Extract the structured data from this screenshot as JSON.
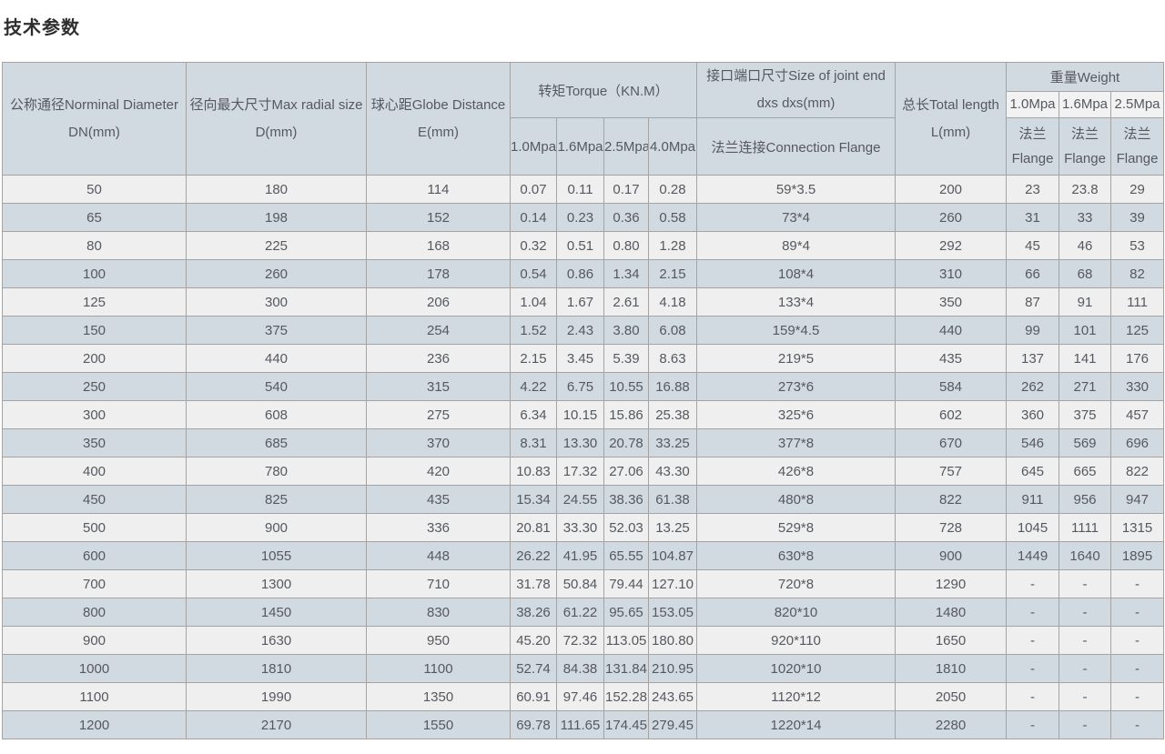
{
  "title": "技术参数",
  "header": {
    "dn": {
      "line1": "公称通径Norminal Diameter",
      "line2": "DN(mm)"
    },
    "d": {
      "line1": "径向最大尺寸Max radial size",
      "line2": "D(mm)"
    },
    "e": {
      "line1": "球心距Globe Distance",
      "line2": "E(mm)"
    },
    "torque": {
      "title": "转矩Torque（KN.M）",
      "cols": [
        "1.0Mpa",
        "1.6Mpa",
        "2.5Mpa",
        "4.0Mpa"
      ]
    },
    "joint": {
      "line1": "接口端口尺寸Size of joint end",
      "line2": "dxs dxs(mm)",
      "sub": "法兰连接Connection Flange"
    },
    "length": {
      "line1": "总长Total length",
      "line2": "L(mm)"
    },
    "weight": {
      "title": "重量Weight",
      "cols": [
        "1.0Mpa",
        "1.6Mpa",
        "2.5Mpa"
      ],
      "sub_line1": "法兰",
      "sub_line2": "Flange"
    }
  },
  "table": {
    "rows": [
      [
        "50",
        "180",
        "114",
        "0.07",
        "0.11",
        "0.17",
        "0.28",
        "59*3.5",
        "200",
        "23",
        "23.8",
        "29"
      ],
      [
        "65",
        "198",
        "152",
        "0.14",
        "0.23",
        "0.36",
        "0.58",
        "73*4",
        "260",
        "31",
        "33",
        "39"
      ],
      [
        "80",
        "225",
        "168",
        "0.32",
        "0.51",
        "0.80",
        "1.28",
        "89*4",
        "292",
        "45",
        "46",
        "53"
      ],
      [
        "100",
        "260",
        "178",
        "0.54",
        "0.86",
        "1.34",
        "2.15",
        "108*4",
        "310",
        "66",
        "68",
        "82"
      ],
      [
        "125",
        "300",
        "206",
        "1.04",
        "1.67",
        "2.61",
        "4.18",
        "133*4",
        "350",
        "87",
        "91",
        "111"
      ],
      [
        "150",
        "375",
        "254",
        "1.52",
        "2.43",
        "3.80",
        "6.08",
        "159*4.5",
        "440",
        "99",
        "101",
        "125"
      ],
      [
        "200",
        "440",
        "236",
        "2.15",
        "3.45",
        "5.39",
        "8.63",
        "219*5",
        "435",
        "137",
        "141",
        "176"
      ],
      [
        "250",
        "540",
        "315",
        "4.22",
        "6.75",
        "10.55",
        "16.88",
        "273*6",
        "584",
        "262",
        "271",
        "330"
      ],
      [
        "300",
        "608",
        "275",
        "6.34",
        "10.15",
        "15.86",
        "25.38",
        "325*6",
        "602",
        "360",
        "375",
        "457"
      ],
      [
        "350",
        "685",
        "370",
        "8.31",
        "13.30",
        "20.78",
        "33.25",
        "377*8",
        "670",
        "546",
        "569",
        "696"
      ],
      [
        "400",
        "780",
        "420",
        "10.83",
        "17.32",
        "27.06",
        "43.30",
        "426*8",
        "757",
        "645",
        "665",
        "822"
      ],
      [
        "450",
        "825",
        "435",
        "15.34",
        "24.55",
        "38.36",
        "61.38",
        "480*8",
        "822",
        "911",
        "956",
        "947"
      ],
      [
        "500",
        "900",
        "336",
        "20.81",
        "33.30",
        "52.03",
        "13.25",
        "529*8",
        "728",
        "1045",
        "1111",
        "1315"
      ],
      [
        "600",
        "1055",
        "448",
        "26.22",
        "41.95",
        "65.55",
        "104.87",
        "630*8",
        "900",
        "1449",
        "1640",
        "1895"
      ],
      [
        "700",
        "1300",
        "710",
        "31.78",
        "50.84",
        "79.44",
        "127.10",
        "720*8",
        "1290",
        "-",
        "-",
        "-"
      ],
      [
        "800",
        "1450",
        "830",
        "38.26",
        "61.22",
        "95.65",
        "153.05",
        "820*10",
        "1480",
        "-",
        "-",
        "-"
      ],
      [
        "900",
        "1630",
        "950",
        "45.20",
        "72.32",
        "113.05",
        "180.80",
        "920*110",
        "1650",
        "-",
        "-",
        "-"
      ],
      [
        "1000",
        "1810",
        "1100",
        "52.74",
        "84.38",
        "131.84",
        "210.95",
        "1020*10",
        "1810",
        "-",
        "-",
        "-"
      ],
      [
        "1100",
        "1990",
        "1350",
        "60.91",
        "97.46",
        "152.28",
        "243.65",
        "1120*12",
        "2050",
        "-",
        "-",
        "-"
      ],
      [
        "1200",
        "2170",
        "1550",
        "69.78",
        "111.65",
        "174.45",
        "279.45",
        "1220*14",
        "2280",
        "-",
        "-",
        "-"
      ]
    ]
  },
  "colors": {
    "header_bg": "#d2dae1",
    "subheader_light_bg": "#f2f2f2",
    "row_light_bg": "#efefef",
    "row_blue_bg": "#d2dae1",
    "border": "#a4a4a4",
    "text": "#55595f",
    "title_text": "#2e2e2e"
  }
}
